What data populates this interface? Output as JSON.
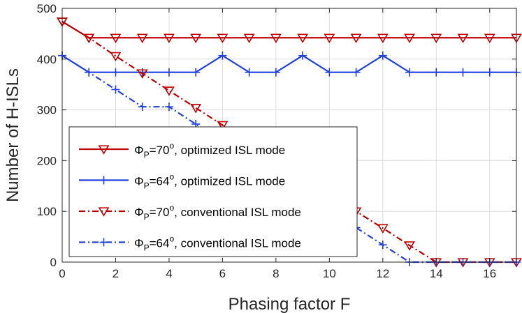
{
  "chart_data": {
    "type": "line",
    "xlabel": "Phasing factor F",
    "ylabel": "Number of H-ISLs",
    "xlim": [
      0,
      17
    ],
    "ylim": [
      0,
      500
    ],
    "xticks": [
      0,
      2,
      4,
      6,
      8,
      10,
      12,
      14,
      16
    ],
    "yticks": [
      0,
      100,
      200,
      300,
      400,
      500
    ],
    "grid": true,
    "legend_position": "lower-left",
    "x": [
      0,
      1,
      2,
      3,
      4,
      5,
      6,
      7,
      8,
      9,
      10,
      11,
      12,
      13,
      14,
      15,
      16,
      17
    ],
    "series": [
      {
        "name": "ΦP=70°, optimized ISL mode",
        "legend": {
          "symbol": "Φ",
          "sub": "P",
          "mid": "=70",
          "sup": "o",
          "rest": ", optimized ISL mode"
        },
        "color": "#c00000",
        "line_style": "solid",
        "marker": "triangle-down",
        "values": [
          474,
          442,
          442,
          442,
          442,
          442,
          442,
          442,
          442,
          442,
          442,
          442,
          442,
          442,
          442,
          442,
          442,
          442
        ]
      },
      {
        "name": "ΦP=64°, optimized ISL mode",
        "legend": {
          "symbol": "Φ",
          "sub": "P",
          "mid": "=64",
          "sup": "o",
          "rest": ", optimized ISL mode"
        },
        "color": "#1f3fe0",
        "line_style": "solid",
        "marker": "plus",
        "values": [
          407,
          374,
          374,
          374,
          374,
          374,
          407,
          374,
          374,
          407,
          374,
          374,
          407,
          374,
          374,
          374,
          374,
          374
        ]
      },
      {
        "name": "ΦP=70°, conventional ISL mode",
        "legend": {
          "symbol": "Φ",
          "sub": "P",
          "mid": "=70",
          "sup": "o",
          "rest": ", conventional ISL mode"
        },
        "color": "#c00000",
        "line_style": "dashdot",
        "marker": "triangle-down",
        "values": [
          474,
          442,
          406,
          372,
          338,
          304,
          270,
          236,
          202,
          168,
          134,
          100,
          67,
          33,
          0,
          0,
          0,
          0
        ]
      },
      {
        "name": "ΦP=64°, conventional ISL mode",
        "legend": {
          "symbol": "Φ",
          "sub": "P",
          "mid": "=64",
          "sup": "o",
          "rest": ", conventional ISL mode"
        },
        "color": "#1f3fe0",
        "line_style": "dashdot",
        "marker": "plus",
        "values": [
          407,
          374,
          340,
          306,
          306,
          272,
          238,
          204,
          170,
          136,
          102,
          68,
          34,
          0,
          0,
          0,
          0,
          0
        ]
      }
    ]
  }
}
